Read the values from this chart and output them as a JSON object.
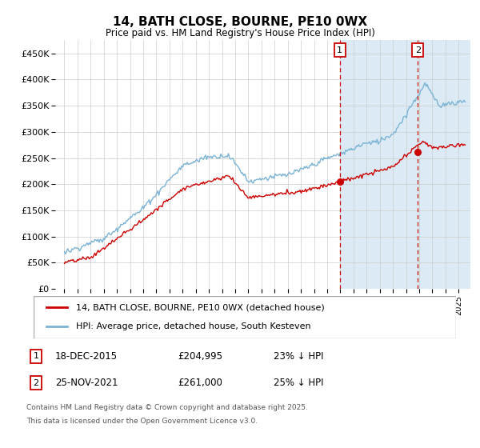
{
  "title": "14, BATH CLOSE, BOURNE, PE10 0WX",
  "subtitle": "Price paid vs. HM Land Registry's House Price Index (HPI)",
  "ylim": [
    0,
    475000
  ],
  "yticks": [
    0,
    50000,
    100000,
    150000,
    200000,
    250000,
    300000,
    350000,
    400000,
    450000
  ],
  "ytick_labels": [
    "£0",
    "£50K",
    "£100K",
    "£150K",
    "£200K",
    "£250K",
    "£300K",
    "£350K",
    "£400K",
    "£450K"
  ],
  "hpi_color": "#7ab3d4",
  "price_color": "#cc0000",
  "annotation1_date": "18-DEC-2015",
  "annotation1_price": "£204,995",
  "annotation1_hpi_pct": "23% ↓ HPI",
  "annotation2_date": "25-NOV-2021",
  "annotation2_price": "£261,000",
  "annotation2_hpi_pct": "25% ↓ HPI",
  "sale1_x": 2015.96,
  "sale1_y": 204995,
  "sale2_x": 2021.9,
  "sale2_y": 261000,
  "legend_label_price": "14, BATH CLOSE, BOURNE, PE10 0WX (detached house)",
  "legend_label_hpi": "HPI: Average price, detached house, South Kesteven",
  "footnote1": "Contains HM Land Registry data © Crown copyright and database right 2025.",
  "footnote2": "This data is licensed under the Open Government Licence v3.0.",
  "bg_highlight_color": "#dbeaf5",
  "vline_color": "#cc0000",
  "grid_color": "#cccccc",
  "xlim_left": 1994.3,
  "xlim_right": 2025.9
}
